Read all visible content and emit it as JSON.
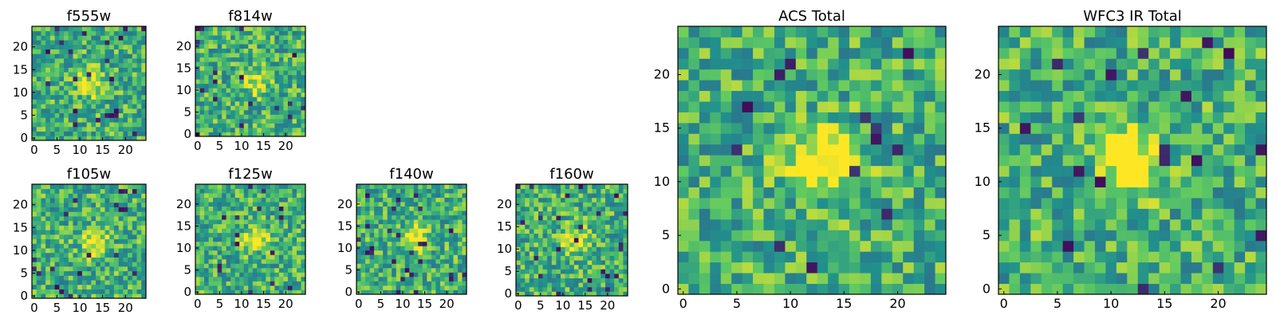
{
  "chart_data": [
    {
      "type": "heatmap",
      "title": "f555w",
      "xticks": [
        "0",
        "5",
        "10",
        "15",
        "20"
      ],
      "yticks": [
        "0",
        "5",
        "10",
        "15",
        "20"
      ],
      "xlim": [
        0,
        25
      ],
      "ylim": [
        0,
        25
      ],
      "colormap": "viridis",
      "peak": [
        13,
        12
      ]
    },
    {
      "type": "heatmap",
      "title": "f814w",
      "xticks": [
        "0",
        "5",
        "10",
        "15",
        "20"
      ],
      "yticks": [
        "0",
        "5",
        "10",
        "15",
        "20"
      ],
      "xlim": [
        0,
        25
      ],
      "ylim": [
        0,
        25
      ],
      "colormap": "viridis",
      "peak": [
        13,
        12
      ]
    },
    {
      "type": "heatmap",
      "title": "f105w",
      "xticks": [
        "0",
        "5",
        "10",
        "15",
        "20"
      ],
      "yticks": [
        "0",
        "5",
        "10",
        "15",
        "20"
      ],
      "xlim": [
        0,
        25
      ],
      "ylim": [
        0,
        25
      ],
      "colormap": "viridis",
      "peak": [
        13,
        12
      ]
    },
    {
      "type": "heatmap",
      "title": "f125w",
      "xticks": [
        "0",
        "5",
        "10",
        "15",
        "20"
      ],
      "yticks": [
        "0",
        "5",
        "10",
        "15",
        "20"
      ],
      "xlim": [
        0,
        25
      ],
      "ylim": [
        0,
        25
      ],
      "colormap": "viridis",
      "peak": [
        13,
        12
      ]
    },
    {
      "type": "heatmap",
      "title": "f140w",
      "xticks": [
        "0",
        "5",
        "10",
        "15",
        "20"
      ],
      "yticks": [
        "0",
        "5",
        "10",
        "15",
        "20"
      ],
      "xlim": [
        0,
        25
      ],
      "ylim": [
        0,
        25
      ],
      "colormap": "viridis",
      "peak": [
        13,
        12
      ]
    },
    {
      "type": "heatmap",
      "title": "f160w",
      "xticks": [
        "0",
        "5",
        "10",
        "15",
        "20"
      ],
      "yticks": [
        "0",
        "5",
        "10",
        "15",
        "20"
      ],
      "xlim": [
        0,
        25
      ],
      "ylim": [
        0,
        25
      ],
      "colormap": "viridis",
      "peak": [
        13,
        12
      ]
    },
    {
      "type": "heatmap",
      "title": "ACS Total",
      "xticks": [
        "0",
        "5",
        "10",
        "15",
        "20"
      ],
      "yticks": [
        "0",
        "5",
        "10",
        "15",
        "20"
      ],
      "xlim": [
        0,
        25
      ],
      "ylim": [
        0,
        25
      ],
      "colormap": "viridis",
      "peak": [
        13,
        12
      ]
    },
    {
      "type": "heatmap",
      "title": "WFC3 IR Total",
      "xticks": [
        "0",
        "5",
        "10",
        "15",
        "20"
      ],
      "yticks": [
        "0",
        "5",
        "10",
        "15",
        "20"
      ],
      "xlim": [
        0,
        25
      ],
      "ylim": [
        0,
        25
      ],
      "colormap": "viridis",
      "peak": [
        12,
        12
      ]
    }
  ],
  "colors": {
    "low": "#440154",
    "mid_low": "#31688e",
    "mid": "#21918c",
    "mid_high": "#5ec962",
    "high": "#fde725"
  }
}
